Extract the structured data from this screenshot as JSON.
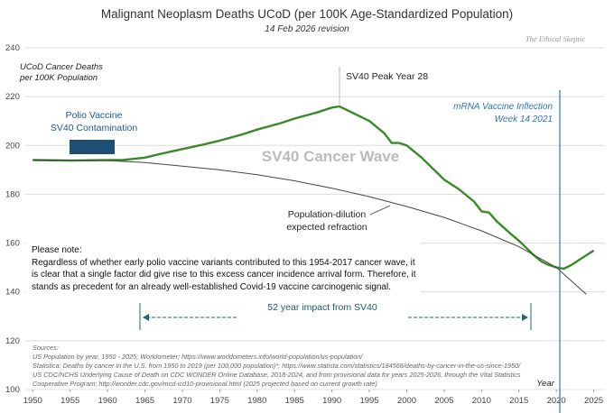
{
  "chart_data": {
    "type": "line",
    "title": "Malignant Neoplasm Deaths UCoD (per 100K Age-Standardized Population)",
    "subtitle": "14 Feb 2026 revision",
    "watermark": "The Ethical Skeptic",
    "y_label": [
      "UCoD Cancer Deaths",
      "per 100K Population"
    ],
    "x_label": "Year",
    "annotations": {
      "polio": [
        "Polio Vaccine",
        "SV40 Contamination"
      ],
      "peak": "SV40  Peak Year 28",
      "mrna": [
        "mRNA Vaccine Inflection",
        "Week 14 2021"
      ],
      "wave": "SV40 Cancer Wave",
      "dilution": [
        "Population-dilution",
        "expected refraction"
      ],
      "impact": "52 year impact from SV40",
      "note": [
        "Please note:",
        "Regardless of whether early polio vaccine variants contributed to this 1954-2017 cancer wave, it",
        "is clear that a single factor did give rise to this excess cancer incidence arrival form. Therefore, it",
        "stands as precedent for an already well-established Covid-19 vaccine carcinogenic signal."
      ],
      "sources": [
        "Sources:",
        "US Population by year, 1950 - 2025; Worldometer; https://www.worldometers.info/world-population/us-population/",
        "Statistica: Deaths by cancer in the U.S. from 1950 to 2019 (per 100,000 population)*; https://www.statista.com/statistics/184566/deaths-by-cancer-in-the-us-since-1950/",
        "US CDC/NCHS Underlying Cause of Death on CDC WONDER Online Database, 2018-2024, and from provisional data for years 2025-2026, through the Vital Statistics",
        "Cooperative Program; http://wonder.cdc.gov/mcd-icd10-provisional.html (2025 projected based on current growth rate)"
      ]
    },
    "xlim": [
      1949,
      2026.5
    ],
    "ylim": [
      100,
      240
    ],
    "xticks": [
      1950,
      1955,
      1960,
      1965,
      1970,
      1975,
      1980,
      1985,
      1990,
      1995,
      2000,
      2005,
      2010,
      2015,
      2020,
      2025
    ],
    "yticks": [
      100,
      120,
      140,
      160,
      180,
      200,
      220,
      240
    ],
    "grid": true,
    "series": [
      {
        "color": "#3a8a2a",
        "x": [
          1950,
          1955,
          1960,
          1962,
          1965,
          1967,
          1970,
          1973,
          1975,
          1978,
          1980,
          1983,
          1985,
          1988,
          1990,
          1991,
          1992,
          1995,
          1997,
          1998,
          1999,
          2000,
          2002,
          2004,
          2005,
          2007,
          2009,
          2010,
          2011,
          2012,
          2014,
          2015,
          2016,
          2017,
          2018,
          2019,
          2020,
          2021,
          2022,
          2023,
          2024,
          2025
        ],
        "values": [
          194,
          193.8,
          194,
          194,
          195,
          196.5,
          198.5,
          200.5,
          202,
          204.5,
          206.5,
          209,
          211,
          213.5,
          215.5,
          216,
          214.5,
          210,
          205,
          201,
          201,
          200,
          195,
          189,
          186,
          182,
          177,
          173,
          172.5,
          169,
          163.5,
          161,
          158,
          155,
          152.5,
          151,
          150,
          149.5,
          151,
          153,
          155,
          157
        ]
      },
      {
        "color": "#444444",
        "x": [
          1950,
          1955,
          1960,
          1965,
          1970,
          1975,
          1980,
          1985,
          1990,
          1995,
          2000,
          2005,
          2010,
          2015,
          2020,
          2024
        ],
        "values": [
          194,
          194,
          193.8,
          193,
          191.5,
          190,
          188,
          185.5,
          182.5,
          179,
          175,
          170.5,
          165,
          158.5,
          150,
          139
        ]
      }
    ]
  }
}
